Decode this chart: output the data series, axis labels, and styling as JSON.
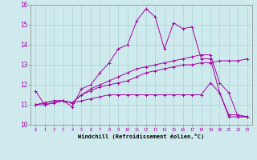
{
  "xlabel": "Windchill (Refroidissement éolien,°C)",
  "background_color": "#ceeaec",
  "grid_color": "#aad4d8",
  "line_color": "#aa00aa",
  "xlim": [
    -0.5,
    23.5
  ],
  "ylim": [
    10,
    16
  ],
  "xticks": [
    0,
    1,
    2,
    3,
    4,
    5,
    6,
    7,
    8,
    9,
    10,
    11,
    12,
    13,
    14,
    15,
    16,
    17,
    18,
    19,
    20,
    21,
    22,
    23
  ],
  "yticks": [
    10,
    11,
    12,
    13,
    14,
    15,
    16
  ],
  "series": [
    [
      11.7,
      11.0,
      11.1,
      11.2,
      10.9,
      11.8,
      12.0,
      12.6,
      13.1,
      13.8,
      14.0,
      15.2,
      15.8,
      15.4,
      13.8,
      15.1,
      14.8,
      14.9,
      13.3,
      13.3,
      11.6,
      10.5,
      10.5,
      10.4
    ],
    [
      11.0,
      11.1,
      11.2,
      11.2,
      11.1,
      11.5,
      11.7,
      11.9,
      12.0,
      12.1,
      12.2,
      12.4,
      12.6,
      12.7,
      12.8,
      12.9,
      13.0,
      13.0,
      13.1,
      13.1,
      13.2,
      13.2,
      13.2,
      13.3
    ],
    [
      11.0,
      11.1,
      11.2,
      11.2,
      11.1,
      11.2,
      11.3,
      11.4,
      11.5,
      11.5,
      11.5,
      11.5,
      11.5,
      11.5,
      11.5,
      11.5,
      11.5,
      11.5,
      11.5,
      12.1,
      11.6,
      10.4,
      10.4,
      10.4
    ],
    [
      11.0,
      11.0,
      11.1,
      11.2,
      11.1,
      11.5,
      11.8,
      12.0,
      12.2,
      12.4,
      12.6,
      12.8,
      12.9,
      13.0,
      13.1,
      13.2,
      13.3,
      13.4,
      13.5,
      13.5,
      12.1,
      11.6,
      10.4,
      10.4
    ]
  ]
}
